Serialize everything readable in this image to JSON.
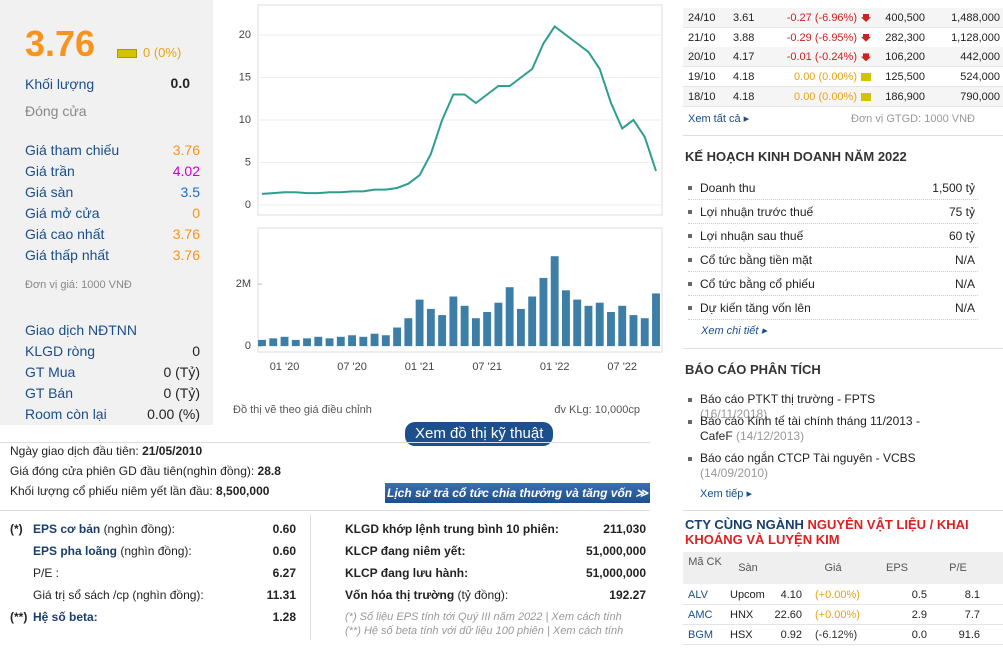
{
  "summary": {
    "price": "3.76",
    "change": "0 (0%)",
    "volume_label": "Khối lượng",
    "volume": "0.0",
    "close_label": "Đóng cửa"
  },
  "prices": [
    {
      "label": "Giá tham chiếu",
      "value": "3.76",
      "color": "#f7941d"
    },
    {
      "label": "Giá trần",
      "value": "4.02",
      "color": "#cc00cc"
    },
    {
      "label": "Giá sàn",
      "value": "3.5",
      "color": "#1a6fc4"
    },
    {
      "label": "Giá mở cửa",
      "value": "0",
      "color": "#f7941d"
    },
    {
      "label": "Giá cao nhất",
      "value": "3.76",
      "color": "#f7941d"
    },
    {
      "label": "Giá thấp nhất",
      "value": "3.76",
      "color": "#f7941d"
    }
  ],
  "price_unit": "Đơn vị giá: 1000 VNĐ",
  "foreign": {
    "title": "Giao dịch NĐTNN",
    "rows": [
      {
        "label": "KLGD ròng",
        "value": "0"
      },
      {
        "label": "GT Mua",
        "value": "0 (Tỷ)"
      },
      {
        "label": "GT Bán",
        "value": "0 (Tỷ)"
      },
      {
        "label": "Room còn lại",
        "value": "0.00 (%)"
      }
    ]
  },
  "chart_data": {
    "type": "line",
    "color": "#2e9e8f",
    "categories": [
      null,
      null,
      "01 '20",
      null,
      null,
      null,
      null,
      null,
      "07 '20",
      null,
      null,
      null,
      null,
      null,
      "01 '21",
      null,
      null,
      null,
      null,
      null,
      "07 '21",
      null,
      null,
      null,
      null,
      null,
      "01 '22",
      null,
      null,
      null,
      null,
      null,
      "07 '22",
      null,
      null,
      null
    ],
    "values": [
      1.3,
      1.4,
      1.5,
      1.5,
      1.4,
      1.4,
      1.5,
      1.5,
      1.6,
      1.6,
      1.8,
      1.8,
      2.0,
      2.5,
      3.5,
      6,
      10,
      13,
      13,
      12,
      13,
      14,
      14,
      15,
      16,
      19,
      21,
      20,
      19,
      18,
      16,
      12,
      9,
      10,
      8,
      4
    ],
    "ylim": [
      -1.18,
      23.53
    ],
    "yticks": [
      0,
      5,
      10,
      15,
      20
    ],
    "volume": {
      "color": "#3d7ea6",
      "values": [
        200000,
        250000,
        300000,
        200000,
        250000,
        300000,
        250000,
        300000,
        350000,
        300000,
        400000,
        350000,
        600000,
        900000,
        1500000,
        1200000,
        1000000,
        1600000,
        1300000,
        900000,
        1100000,
        1400000,
        1900000,
        1200000,
        1600000,
        2200000,
        2900000,
        1800000,
        1500000,
        1300000,
        1400000,
        1100000,
        1300000,
        1000000,
        900000,
        1700000
      ],
      "ylim": [
        -190000,
        3810000
      ],
      "yticks": [
        0,
        {
          "value": 2000000,
          "label": "2M"
        }
      ]
    }
  },
  "chart_notes": {
    "left": "Đồ thị vẽ theo giá điều chỉnh",
    "right": "đv KLg: 10,000cp",
    "button": "Xem đồ thị kỹ thuật"
  },
  "listing": [
    {
      "label": "Ngày giao dịch đầu tiên:",
      "value": "21/05/2010"
    },
    {
      "label": "Giá đóng cửa phiên GD đầu tiên(nghìn đồng):",
      "value": "28.8"
    },
    {
      "label": "Khối lượng cổ phiếu niêm yết lần đầu:",
      "value": "8,500,000"
    }
  ],
  "dividend_button": "Lịch sử trả cổ tức chia thưởng và tăng vốn ≫",
  "metrics_left": [
    {
      "mark": "(*)",
      "name": "EPS cơ bản",
      "unit": "(nghìn đồng):",
      "value": "0.60",
      "bold": true
    },
    {
      "name": "EPS pha loãng",
      "unit": "(nghìn đồng):",
      "value": "0.60",
      "bold": true
    },
    {
      "name": "P/E :",
      "value": "6.27",
      "bold": false
    },
    {
      "name": "Giá trị sổ sách /cp",
      "unit": "(nghìn đồng):",
      "value": "11.31",
      "bold": false
    },
    {
      "mark": "(**)",
      "name": "Hệ số beta:",
      "value": "1.28",
      "bold": true
    }
  ],
  "metrics_right": [
    {
      "label": "KLGD khớp lệnh trung bình 10 phiên:",
      "value": "211,030"
    },
    {
      "label": "KLCP đang niêm yết:",
      "value": "51,000,000"
    },
    {
      "label": "KLCP đang lưu hành:",
      "value": "51,000,000"
    },
    {
      "label": "Vốn hóa thị trường",
      "unit": "(tỷ đồng):",
      "value": "192.27"
    }
  ],
  "footnotes": [
    "(*) Số liệu EPS tính tới Quý III năm 2022 | Xem cách tính",
    "(**) Hệ số beta tính với dữ liệu 100 phiên | Xem cách tính"
  ],
  "trades": {
    "rows": [
      {
        "date": "24/10",
        "price": "3.61",
        "change": "-0.27 (-6.96%)",
        "volume": "400,500",
        "value": "1,488,000"
      },
      {
        "date": "21/10",
        "price": "3.88",
        "change": "-0.29 (-6.95%)",
        "volume": "282,300",
        "value": "1,128,000"
      },
      {
        "date": "20/10",
        "price": "4.17",
        "change": "-0.01 (-0.24%)",
        "volume": "106,200",
        "value": "442,000"
      },
      {
        "date": "19/10",
        "price": "4.18",
        "change": "0.00 (0.00%)",
        "volume": "125,500",
        "value": "524,000"
      },
      {
        "date": "18/10",
        "price": "4.18",
        "change": "0.00 (0.00%)",
        "volume": "186,900",
        "value": "790,000"
      }
    ],
    "more": "Xem tất cả ▸",
    "unit": "Đơn vị GTGD: 1000 VNĐ"
  },
  "plan": {
    "title": "KẾ HOẠCH KINH DOANH NĂM 2022",
    "rows": [
      {
        "label": "Doanh thu",
        "value": "1,500 tỷ"
      },
      {
        "label": "Lợi nhuận trước thuế",
        "value": "75 tỷ"
      },
      {
        "label": "Lợi nhuận sau thuế",
        "value": "60 tỷ"
      },
      {
        "label": "Cổ tức bằng tiền mặt",
        "value": "N/A"
      },
      {
        "label": "Cổ tức bằng cổ phiếu",
        "value": "N/A"
      },
      {
        "label": "Dự kiến tăng vốn lên",
        "value": "N/A"
      }
    ],
    "more": "Xem chi tiết ▸"
  },
  "reports": {
    "title": "BÁO CÁO PHÂN TÍCH",
    "items": [
      {
        "title": "Báo cáo PTKT thị trường - FPTS",
        "date": "(16/11/2018)"
      },
      {
        "title": "Báo cáo Kinh tế tài chính tháng 11/2013 - CafeF",
        "date": "(14/12/2013)"
      },
      {
        "title": "Báo cáo ngắn CTCP Tài nguyên - VCBS",
        "date": "(14/09/2010)"
      }
    ],
    "more": "Xem tiếp ▸"
  },
  "peers": {
    "title": "CTY CÙNG NGÀNH",
    "industry": "NGUYÊN VẬT LIỆU / KHAI KHOÁNG VÀ LUYỆN KIM",
    "columns": [
      "Mã CK",
      "Sàn",
      "Giá",
      "EPS",
      "P/E"
    ],
    "rows": [
      [
        "ALV",
        "Upcom",
        "4.10",
        "(+0.00%)",
        "0.5",
        "8.1"
      ],
      [
        "AMC",
        "HNX",
        "22.60",
        "(+0.00%)",
        "2.9",
        "7.7"
      ],
      [
        "BGM",
        "HSX",
        "0.92",
        "(-6.12%)",
        "0.0",
        "91.6"
      ]
    ]
  }
}
